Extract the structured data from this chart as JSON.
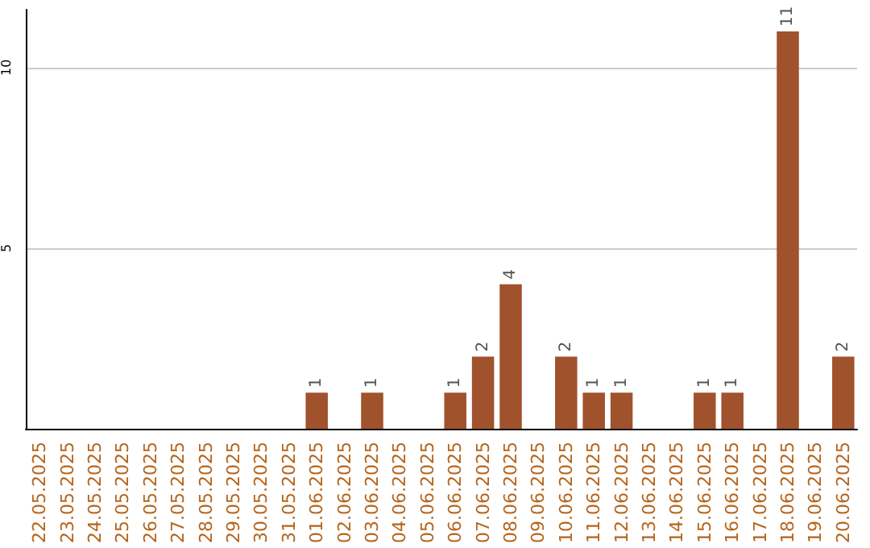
{
  "chart_data": {
    "type": "bar",
    "categories": [
      "22.05.2025",
      "23.05.2025",
      "24.05.2025",
      "25.05.2025",
      "26.05.2025",
      "27.05.2025",
      "28.05.2025",
      "29.05.2025",
      "30.05.2025",
      "31.05.2025",
      "01.06.2025",
      "02.06.2025",
      "03.06.2025",
      "04.06.2025",
      "05.06.2025",
      "06.06.2025",
      "07.06.2025",
      "08.06.2025",
      "09.06.2025",
      "10.06.2025",
      "11.06.2025",
      "12.06.2025",
      "13.06.2025",
      "14.06.2025",
      "15.06.2025",
      "16.06.2025",
      "17.06.2025",
      "18.06.2025",
      "19.06.2025",
      "20.06.2025"
    ],
    "values": [
      0,
      0,
      0,
      0,
      0,
      0,
      0,
      0,
      0,
      0,
      1,
      0,
      1,
      0,
      0,
      1,
      2,
      4,
      0,
      2,
      1,
      1,
      0,
      0,
      1,
      1,
      0,
      11,
      0,
      2
    ],
    "value_labels": [
      null,
      null,
      null,
      null,
      null,
      null,
      null,
      null,
      null,
      null,
      "1",
      null,
      "1",
      null,
      null,
      "1",
      "2",
      "4",
      null,
      "2",
      "1",
      "1",
      null,
      null,
      "1",
      "1",
      null,
      "11",
      null,
      "2"
    ],
    "color": "#a0522d",
    "ylim": [
      0,
      11.6
    ],
    "yticks": [
      5,
      10
    ],
    "grid": "y"
  }
}
